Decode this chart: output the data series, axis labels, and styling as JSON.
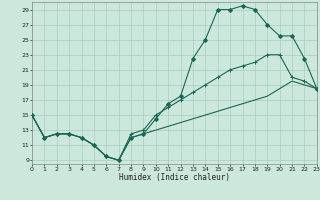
{
  "xlabel": "Humidex (Indice chaleur)",
  "bg_color": "#cce8dd",
  "grid_color": "#aaccbb",
  "line_color": "#1a6655",
  "line1_x": [
    0,
    1,
    2,
    3,
    4,
    5,
    6,
    7,
    8,
    9,
    10,
    11,
    12,
    13,
    14,
    15,
    16,
    17,
    18,
    19,
    20,
    21,
    22,
    23
  ],
  "line1_y": [
    15,
    12,
    12.5,
    12.5,
    12,
    11,
    9.5,
    9,
    12,
    12.5,
    14.5,
    16.5,
    17.5,
    22.5,
    25,
    29,
    29,
    29.5,
    29,
    27,
    25.5,
    25.5,
    22.5,
    18.5
  ],
  "line2_x": [
    0,
    1,
    2,
    3,
    4,
    5,
    6,
    7,
    8,
    9,
    10,
    11,
    12,
    13,
    14,
    15,
    16,
    17,
    18,
    19,
    20,
    21,
    22,
    23
  ],
  "line2_y": [
    15,
    12,
    12.5,
    12.5,
    12,
    11,
    9.5,
    9,
    12.5,
    13,
    15,
    16,
    17,
    18,
    19,
    20,
    21,
    21.5,
    22,
    23,
    23,
    20,
    19.5,
    18.5
  ],
  "line3_x": [
    0,
    1,
    2,
    3,
    4,
    5,
    6,
    7,
    8,
    9,
    10,
    11,
    12,
    13,
    14,
    15,
    16,
    17,
    18,
    19,
    20,
    21,
    22,
    23
  ],
  "line3_y": [
    15,
    12,
    12.5,
    12.5,
    12,
    11,
    9.5,
    9,
    12,
    12.5,
    13,
    13.5,
    14,
    14.5,
    15,
    15.5,
    16,
    16.5,
    17,
    17.5,
    18.5,
    19.5,
    19,
    18.5
  ],
  "xlim": [
    0,
    23
  ],
  "ylim": [
    8.5,
    30
  ],
  "yticks": [
    9,
    11,
    13,
    15,
    17,
    19,
    21,
    23,
    25,
    27,
    29
  ],
  "xticks": [
    0,
    1,
    2,
    3,
    4,
    5,
    6,
    7,
    8,
    9,
    10,
    11,
    12,
    13,
    14,
    15,
    16,
    17,
    18,
    19,
    20,
    21,
    22,
    23
  ]
}
